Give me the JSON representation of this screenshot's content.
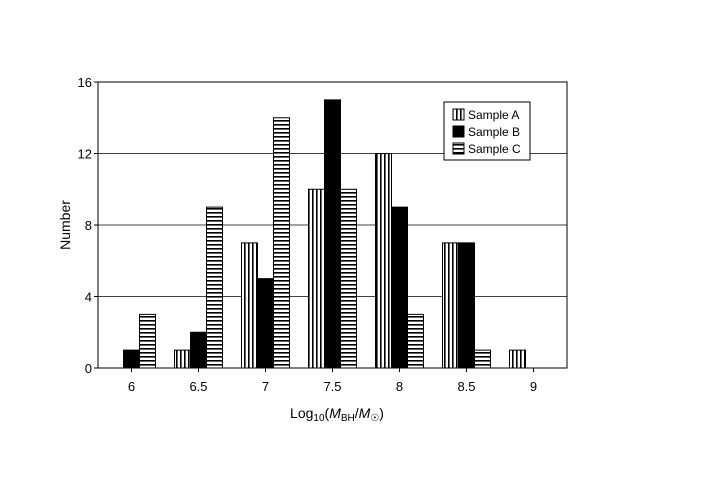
{
  "chart_data": {
    "type": "bar",
    "categories": [
      "6",
      "6.5",
      "7",
      "7.5",
      "8",
      "8.5",
      "9"
    ],
    "series": [
      {
        "name": "Sample A",
        "values": [
          0,
          1,
          7,
          10,
          12,
          7,
          1
        ],
        "pattern": "vertical-stripes"
      },
      {
        "name": "Sample B",
        "values": [
          1,
          2,
          5,
          15,
          9,
          7,
          0
        ],
        "pattern": "solid-black"
      },
      {
        "name": "Sample C",
        "values": [
          3,
          9,
          14,
          10,
          3,
          1,
          0
        ],
        "pattern": "horizontal-stripes"
      }
    ],
    "title": "",
    "xlabel": {
      "main": "Log",
      "sub1": "10",
      "open": "(",
      "m1": "M",
      "sub2": "BH",
      "slash": "/",
      "m2": "M",
      "sub3": "☉",
      "close": ")"
    },
    "ylabel": "Number",
    "ylim": [
      0,
      16
    ],
    "yticks": [
      "0",
      "4",
      "8",
      "12",
      "16"
    ],
    "grid": true,
    "legend_position": "top-right"
  }
}
